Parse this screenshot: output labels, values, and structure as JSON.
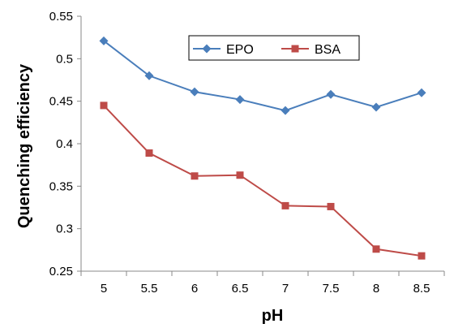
{
  "chart_data": {
    "type": "line",
    "x": [
      5,
      5.5,
      6,
      6.5,
      7,
      7.5,
      8,
      8.5
    ],
    "x_tick_labels": [
      "5",
      "5.5",
      "6",
      "6.5",
      "7",
      "7.5",
      "8",
      "8.5"
    ],
    "y_tick_labels": [
      "0.25",
      "0.3",
      "0.35",
      "0.4",
      "0.45",
      "0.5",
      "0.55"
    ],
    "ylim": [
      0.25,
      0.55
    ],
    "xlabel": "pH",
    "ylabel": "Quenching efficiency",
    "grid": false,
    "legend_position": "top-right",
    "series": [
      {
        "name": "EPO",
        "color": "#4a7ebb",
        "marker": "diamond",
        "values": [
          0.521,
          0.48,
          0.461,
          0.452,
          0.439,
          0.458,
          0.443,
          0.46
        ]
      },
      {
        "name": "BSA",
        "color": "#be4b48",
        "marker": "square",
        "values": [
          0.445,
          0.389,
          0.362,
          0.363,
          0.327,
          0.326,
          0.276,
          0.268
        ]
      }
    ]
  }
}
